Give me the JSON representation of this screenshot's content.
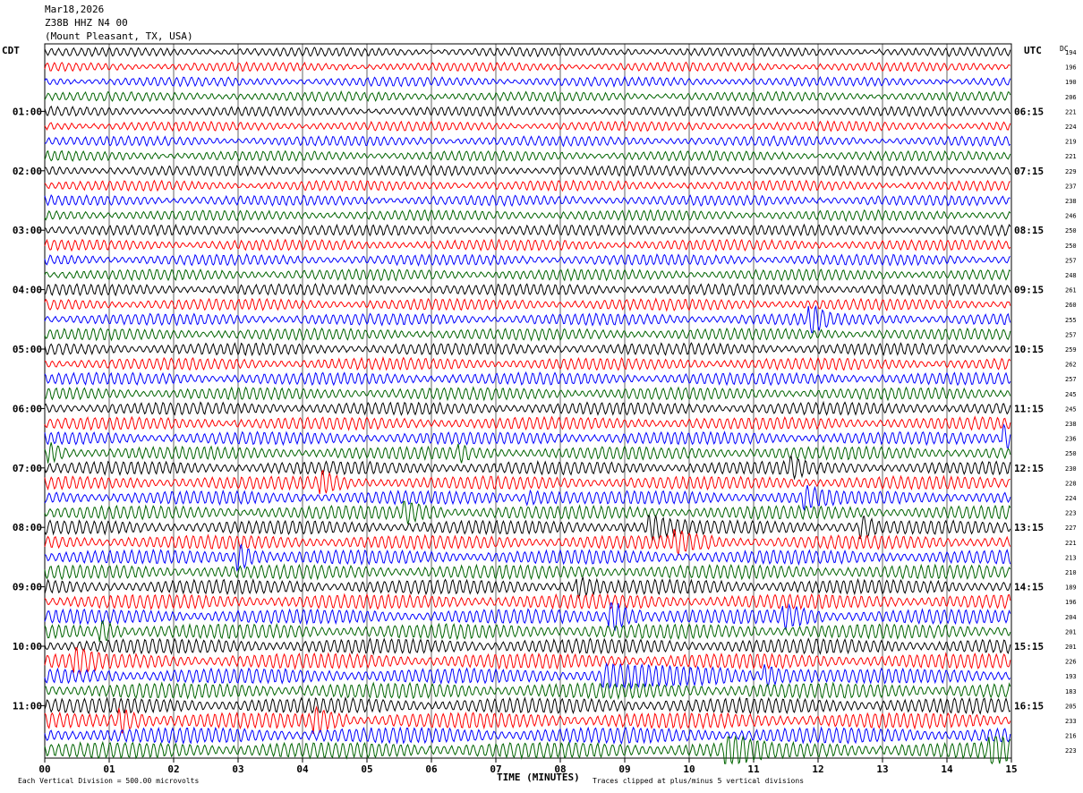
{
  "header": {
    "date": "Mar18,2026",
    "station": "Z38B HHZ N4 00",
    "location": "(Mount Pleasant, TX, USA)"
  },
  "left_zone": "CDT",
  "right_zone": "UTC",
  "dc_label": "DC",
  "footer": {
    "xlabel": "TIME (MINUTES)",
    "scale_note": "Each Vertical Division =  500.00 microvolts",
    "clip_note": "Traces clipped at plus/minus 5 vertical divisions"
  },
  "colors": {
    "series": [
      "#000000",
      "#ff0000",
      "#0000ff",
      "#006400"
    ],
    "grid": "#000000"
  },
  "chart_data": {
    "type": "helicorder",
    "title": "Z38B HHZ N4 00",
    "xlabel": "TIME (MINUTES)",
    "xlim": [
      0,
      15
    ],
    "x_ticks": [
      "00",
      "01",
      "02",
      "03",
      "04",
      "05",
      "06",
      "07",
      "08",
      "09",
      "10",
      "11",
      "12",
      "13",
      "14",
      "15"
    ],
    "lines_per_hour": 4,
    "minutes_per_line": 15,
    "left_hour_labels": [
      "01:00",
      "02:00",
      "03:00",
      "04:00",
      "05:00",
      "06:00",
      "07:00",
      "08:00",
      "09:00",
      "10:00",
      "11:00"
    ],
    "right_hour_labels": [
      "06:15",
      "07:15",
      "08:15",
      "09:15",
      "10:15",
      "11:15",
      "12:15",
      "13:15",
      "14:15",
      "15:15",
      "16:15"
    ],
    "dc_offsets": [
      194,
      196,
      190,
      206,
      221,
      224,
      219,
      221,
      229,
      237,
      238,
      246,
      250,
      250,
      257,
      248,
      261,
      260,
      255,
      257,
      259,
      262,
      257,
      245,
      245,
      238,
      236,
      250,
      230,
      228,
      224,
      223,
      227,
      221,
      213,
      210,
      189,
      196,
      204,
      201,
      201,
      226,
      193,
      183,
      205,
      233,
      216,
      223
    ],
    "events": [
      {
        "line": 18,
        "minute": 11.9,
        "amp": 2.2,
        "dur": 0.35
      },
      {
        "line": 26,
        "minute": 14.9,
        "amp": 2.0,
        "dur": 0.3
      },
      {
        "line": 27,
        "minute": 0.1,
        "amp": 1.2,
        "dur": 0.3
      },
      {
        "line": 27,
        "minute": 6.45,
        "amp": 1.0,
        "dur": 0.2
      },
      {
        "line": 28,
        "minute": 11.6,
        "amp": 1.2,
        "dur": 0.3
      },
      {
        "line": 29,
        "minute": 4.3,
        "amp": 1.5,
        "dur": 0.4
      },
      {
        "line": 30,
        "minute": 11.8,
        "amp": 1.4,
        "dur": 0.5
      },
      {
        "line": 30,
        "minute": 7.5,
        "amp": 0.8,
        "dur": 0.8
      },
      {
        "line": 31,
        "minute": 5.6,
        "amp": 1.3,
        "dur": 0.6
      },
      {
        "line": 32,
        "minute": 9.4,
        "amp": 1.6,
        "dur": 0.6
      },
      {
        "line": 32,
        "minute": 12.7,
        "amp": 1.4,
        "dur": 0.3
      },
      {
        "line": 33,
        "minute": 9.8,
        "amp": 1.3,
        "dur": 0.6
      },
      {
        "line": 34,
        "minute": 3.0,
        "amp": 2.0,
        "dur": 0.5
      },
      {
        "line": 36,
        "minute": 8.3,
        "amp": 1.2,
        "dur": 0.4
      },
      {
        "line": 38,
        "minute": 8.8,
        "amp": 2.6,
        "dur": 0.5
      },
      {
        "line": 38,
        "minute": 11.5,
        "amp": 1.4,
        "dur": 0.6
      },
      {
        "line": 39,
        "minute": 0.9,
        "amp": 1.3,
        "dur": 0.4
      },
      {
        "line": 41,
        "minute": 0.5,
        "amp": 1.6,
        "dur": 0.4
      },
      {
        "line": 42,
        "minute": 8.7,
        "amp": 1.5,
        "dur": 2.0
      },
      {
        "line": 42,
        "minute": 11.2,
        "amp": 1.3,
        "dur": 0.8
      },
      {
        "line": 45,
        "minute": 1.2,
        "amp": 1.5,
        "dur": 0.5
      },
      {
        "line": 45,
        "minute": 4.2,
        "amp": 1.7,
        "dur": 0.5
      },
      {
        "line": 47,
        "minute": 10.6,
        "amp": 2.4,
        "dur": 0.6
      },
      {
        "line": 47,
        "minute": 14.7,
        "amp": 2.3,
        "dur": 0.5
      }
    ]
  }
}
